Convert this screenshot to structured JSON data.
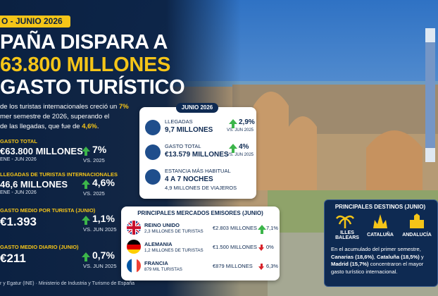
{
  "badge": "O - JUNIO 2026",
  "title": [
    "PAÑA DISPARA A",
    "63.800 MILLONES",
    "GASTO TURÍSTICO"
  ],
  "intro": [
    {
      "text": "de los turistas internacionales creció un ",
      "em": "7%"
    },
    {
      "text": "mer semestre de 2026, superando el"
    },
    {
      "text": "de las llegadas, que fue de ",
      "em": "4,6%",
      "after": "."
    }
  ],
  "stats": [
    {
      "label": "GASTO TOTAL",
      "value": "€63.800 MILLONES",
      "period": "ENE - JUN 2026",
      "change": "7%",
      "compare": "VS. 2025"
    },
    {
      "label": "LLEGADAS DE TURISTAS INTERNACIONALES",
      "value": "46,6 MILLONES",
      "period": "ENE - JUN 2026",
      "change": "4,6%",
      "compare": "VS. 2025"
    },
    {
      "label": "GASTO MEDIO POR TURISTA (JUNIO)",
      "value": "€1.393",
      "change": "1,1%",
      "compare": "VS. JUN 2025"
    },
    {
      "label": "GASTO MEDIO DIARIO (JUNIO)",
      "value": "€211",
      "change": "0,7%",
      "compare": "VS. JUN 2025"
    }
  ],
  "june": {
    "title": "JUNIO 2026",
    "rows": [
      {
        "label": "LLEGADAS",
        "value": "9,7 MILLONES",
        "change": "2,9%",
        "compare": "VS. JUN 2025"
      },
      {
        "label": "GASTO TOTAL",
        "value": "€13.579 MILLONES",
        "change": "4%",
        "compare": "VS. JUN 2025"
      },
      {
        "label": "ESTANCIA MÁS HABITUAL",
        "value": "4 A 7 NOCHES",
        "detail": "4,9 MILLONES DE VIAJEROS"
      }
    ]
  },
  "markets": {
    "title": "PRINCIPALES MERCADOS EMISORES (JUNIO)",
    "rows": [
      {
        "country": "REINO UNIDO",
        "tourists": "2,3 MILLONES DE TURISTAS",
        "spend": "€2.803 MILLONES",
        "change": "7,1%",
        "direction": "up"
      },
      {
        "country": "ALEMANIA",
        "tourists": "1,2 MILLONES DE TURISTAS",
        "spend": "€1.500 MILLONES",
        "change": "0%",
        "direction": "down"
      },
      {
        "country": "FRANCIA",
        "tourists": "879 MIL TURISTAS",
        "spend": "€879 MILLONES",
        "change": "6,3%",
        "direction": "down"
      }
    ]
  },
  "destinations": {
    "title": "PRINCIPALES DESTINOS (JUNIO)",
    "regions": [
      "ILLES BALEARS",
      "CATALUÑA",
      "ANDALUCÍA"
    ],
    "note": [
      {
        "text": "En el acumulado del primer semestre, "
      },
      {
        "text": "Canarias (18,6%)",
        "bold": true
      },
      {
        "text": ", "
      },
      {
        "text": "Cataluña (18,5%)",
        "bold": true
      },
      {
        "text": " y "
      },
      {
        "text": "Madrid (15,7%)",
        "bold": true
      },
      {
        "text": " concentraron el mayor gasto turístico internacional."
      }
    ]
  },
  "source": "r y Egatur (INE) · Ministerio de Industria y Turismo de España"
}
